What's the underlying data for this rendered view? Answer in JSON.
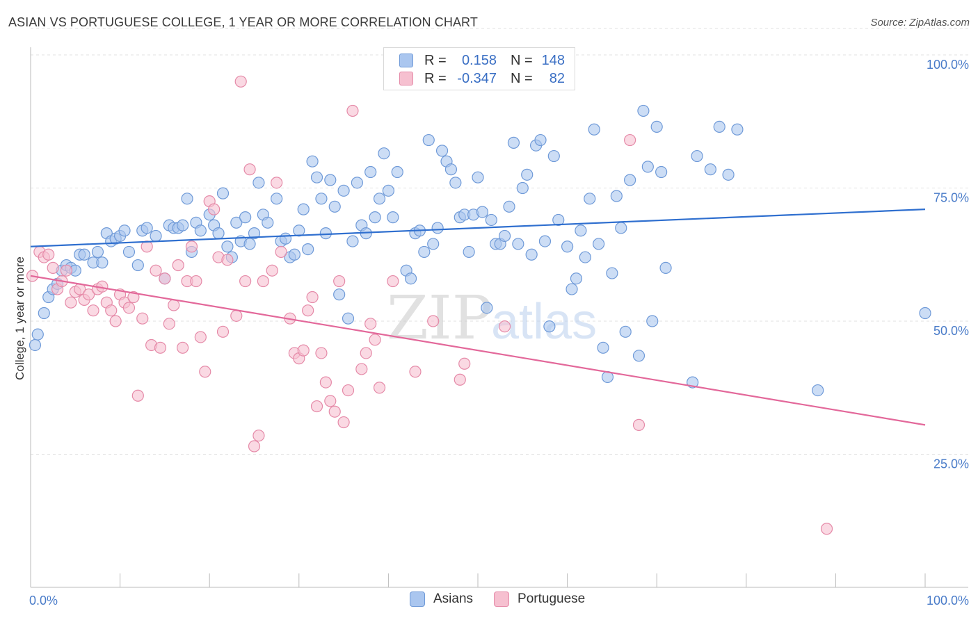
{
  "title": "ASIAN VS PORTUGUESE COLLEGE, 1 YEAR OR MORE CORRELATION CHART",
  "source": "Source: ZipAtlas.com",
  "watermark": {
    "zip": "ZIP",
    "atlas": "atlas"
  },
  "legend": {
    "r_label": "R =",
    "n_label": "N =",
    "asians": {
      "r": "0.158",
      "n": "148"
    },
    "portuguese": {
      "r": "-0.347",
      "n": "82"
    }
  },
  "bottom_legend": {
    "asians": "Asians",
    "portuguese": "Portuguese"
  },
  "colors": {
    "asians_fill": "#aac6ef",
    "asians_stroke": "#6f9ad8",
    "asians_line": "#2f6fcf",
    "portuguese_fill": "#f6c0d0",
    "portuguese_stroke": "#e58aa8",
    "portuguese_line": "#e3689a",
    "tick_text": "#4a7cc9"
  },
  "chart_data": {
    "type": "scatter",
    "title": "ASIAN VS PORTUGUESE COLLEGE, 1 YEAR OR MORE CORRELATION CHART",
    "xlabel": "",
    "ylabel": "College, 1 year or more",
    "xlim": [
      0,
      100
    ],
    "ylim": [
      0,
      105
    ],
    "x_tick_labels": [
      {
        "value": 0,
        "label": "0.0%"
      },
      {
        "value": 100,
        "label": "100.0%"
      }
    ],
    "y_tick_labels": [
      {
        "value": 25,
        "label": "25.0%"
      },
      {
        "value": 50,
        "label": "50.0%"
      },
      {
        "value": 75,
        "label": "75.0%"
      },
      {
        "value": 100,
        "label": "100.0%"
      }
    ],
    "series": [
      {
        "name": "Asians",
        "trend": {
          "x0": 0,
          "y0": 64.0,
          "x1": 100,
          "y1": 71.0
        },
        "points": [
          [
            0.5,
            45.5
          ],
          [
            0.8,
            47.5
          ],
          [
            1.5,
            51.5
          ],
          [
            2,
            54.5
          ],
          [
            2.5,
            56
          ],
          [
            3,
            57
          ],
          [
            3.5,
            59.5
          ],
          [
            4,
            60.5
          ],
          [
            4.5,
            60
          ],
          [
            5,
            59.5
          ],
          [
            5.5,
            62.5
          ],
          [
            6,
            62.5
          ],
          [
            7,
            61
          ],
          [
            7.5,
            63
          ],
          [
            8,
            61
          ],
          [
            8.5,
            66.5
          ],
          [
            9,
            65
          ],
          [
            9.5,
            65.5
          ],
          [
            10,
            66
          ],
          [
            10.5,
            67
          ],
          [
            11,
            63
          ],
          [
            12,
            60.5
          ],
          [
            12.5,
            67
          ],
          [
            13,
            67.5
          ],
          [
            14,
            66
          ],
          [
            15,
            58
          ],
          [
            15.5,
            68
          ],
          [
            16,
            67.5
          ],
          [
            16.5,
            67.5
          ],
          [
            17,
            68
          ],
          [
            17.5,
            73
          ],
          [
            18,
            63
          ],
          [
            18.5,
            68.5
          ],
          [
            19,
            67
          ],
          [
            20,
            70
          ],
          [
            20.5,
            68
          ],
          [
            21,
            66.5
          ],
          [
            21.5,
            74
          ],
          [
            22,
            64
          ],
          [
            22.5,
            62
          ],
          [
            23,
            68.5
          ],
          [
            23.5,
            65
          ],
          [
            24,
            69.5
          ],
          [
            24.5,
            64.5
          ],
          [
            25,
            66.5
          ],
          [
            25.5,
            76
          ],
          [
            26,
            70
          ],
          [
            26.5,
            68.5
          ],
          [
            27.5,
            73
          ],
          [
            28,
            65
          ],
          [
            28.5,
            65.5
          ],
          [
            29,
            62
          ],
          [
            29.5,
            62.5
          ],
          [
            30,
            67
          ],
          [
            30.5,
            71
          ],
          [
            31,
            63.5
          ],
          [
            31.5,
            80
          ],
          [
            32,
            77
          ],
          [
            32.5,
            73
          ],
          [
            33,
            66.5
          ],
          [
            33.5,
            76.5
          ],
          [
            34,
            71.5
          ],
          [
            34.5,
            55
          ],
          [
            35,
            74.5
          ],
          [
            35.5,
            50.5
          ],
          [
            36,
            65
          ],
          [
            36.5,
            76
          ],
          [
            37,
            68
          ],
          [
            37.5,
            66.5
          ],
          [
            38,
            78
          ],
          [
            38.5,
            69.5
          ],
          [
            39,
            73
          ],
          [
            39.5,
            81.5
          ],
          [
            40,
            74.5
          ],
          [
            40.5,
            69.5
          ],
          [
            41,
            78
          ],
          [
            42,
            59.5
          ],
          [
            42.5,
            58
          ],
          [
            43,
            66.5
          ],
          [
            43.5,
            67
          ],
          [
            44,
            63
          ],
          [
            44.5,
            84
          ],
          [
            45,
            64.5
          ],
          [
            45.5,
            67.5
          ],
          [
            46,
            82
          ],
          [
            46.5,
            80
          ],
          [
            47,
            78.5
          ],
          [
            47.5,
            76
          ],
          [
            48,
            69.5
          ],
          [
            48.5,
            70
          ],
          [
            49,
            63
          ],
          [
            49.5,
            70
          ],
          [
            50,
            77
          ],
          [
            50.5,
            70.5
          ],
          [
            51,
            52.5
          ],
          [
            51.5,
            69
          ],
          [
            52,
            64.5
          ],
          [
            52.5,
            64.5
          ],
          [
            53,
            66
          ],
          [
            53.5,
            71.5
          ],
          [
            54,
            83.5
          ],
          [
            54.5,
            64.5
          ],
          [
            55,
            75
          ],
          [
            55.5,
            77.5
          ],
          [
            56,
            62.5
          ],
          [
            56.5,
            83
          ],
          [
            57,
            84
          ],
          [
            57.5,
            65
          ],
          [
            58,
            49
          ],
          [
            58.5,
            81
          ],
          [
            59,
            69
          ],
          [
            60,
            64
          ],
          [
            60.5,
            56
          ],
          [
            61,
            58
          ],
          [
            61.5,
            67
          ],
          [
            62,
            62
          ],
          [
            62.5,
            73
          ],
          [
            63,
            86
          ],
          [
            63.5,
            64.5
          ],
          [
            64,
            45
          ],
          [
            64.5,
            39.5
          ],
          [
            65,
            59
          ],
          [
            65.5,
            73.5
          ],
          [
            66,
            67.5
          ],
          [
            66.5,
            48
          ],
          [
            67,
            76.5
          ],
          [
            68,
            43.5
          ],
          [
            68.5,
            89.5
          ],
          [
            69,
            79
          ],
          [
            69.5,
            50
          ],
          [
            70,
            86.5
          ],
          [
            70.5,
            78
          ],
          [
            71,
            60
          ],
          [
            74,
            38.5
          ],
          [
            74.5,
            81
          ],
          [
            76,
            78.5
          ],
          [
            77,
            86.5
          ],
          [
            78,
            77.5
          ],
          [
            79,
            86
          ],
          [
            88,
            37
          ],
          [
            100,
            51.5
          ]
        ]
      },
      {
        "name": "Portuguese",
        "trend": {
          "x0": 0,
          "y0": 58.5,
          "x1": 100,
          "y1": 30.5
        },
        "points": [
          [
            0.2,
            58.5
          ],
          [
            1,
            63
          ],
          [
            1.5,
            62
          ],
          [
            2,
            62.5
          ],
          [
            2.5,
            60
          ],
          [
            3,
            56
          ],
          [
            3.5,
            57.5
          ],
          [
            4,
            59.5
          ],
          [
            4.5,
            53.5
          ],
          [
            5,
            55.5
          ],
          [
            5.5,
            56
          ],
          [
            6,
            54
          ],
          [
            6.5,
            55
          ],
          [
            7,
            52
          ],
          [
            7.5,
            56
          ],
          [
            8,
            56.5
          ],
          [
            8.5,
            53.5
          ],
          [
            9,
            52
          ],
          [
            9.5,
            50
          ],
          [
            10,
            55
          ],
          [
            10.5,
            53.5
          ],
          [
            11,
            52.5
          ],
          [
            11.5,
            54.5
          ],
          [
            12,
            36
          ],
          [
            12.5,
            50.5
          ],
          [
            13,
            64
          ],
          [
            13.5,
            45.5
          ],
          [
            14,
            59.5
          ],
          [
            14.5,
            45
          ],
          [
            15,
            58
          ],
          [
            15.5,
            49.5
          ],
          [
            16,
            53
          ],
          [
            16.5,
            60.5
          ],
          [
            17,
            45
          ],
          [
            17.5,
            57.5
          ],
          [
            18,
            64
          ],
          [
            18.5,
            57.5
          ],
          [
            19,
            47
          ],
          [
            19.5,
            40.5
          ],
          [
            20,
            72.5
          ],
          [
            20.5,
            71
          ],
          [
            21,
            62
          ],
          [
            21.5,
            48
          ],
          [
            22,
            61.5
          ],
          [
            23,
            51
          ],
          [
            23.5,
            95
          ],
          [
            24,
            57.5
          ],
          [
            24.5,
            78.5
          ],
          [
            25,
            26.5
          ],
          [
            25.5,
            28.5
          ],
          [
            26,
            57.5
          ],
          [
            27,
            59.5
          ],
          [
            27.5,
            76
          ],
          [
            28,
            63
          ],
          [
            29,
            50.5
          ],
          [
            29.5,
            44
          ],
          [
            30,
            43
          ],
          [
            30.5,
            44.5
          ],
          [
            31,
            52
          ],
          [
            31.5,
            54.5
          ],
          [
            32,
            34
          ],
          [
            32.5,
            44
          ],
          [
            33,
            38.5
          ],
          [
            33.5,
            35
          ],
          [
            34,
            33
          ],
          [
            34.5,
            57.5
          ],
          [
            35,
            31
          ],
          [
            35.5,
            37
          ],
          [
            36,
            89.5
          ],
          [
            37,
            41
          ],
          [
            37.5,
            44
          ],
          [
            38,
            49.5
          ],
          [
            38.5,
            46.5
          ],
          [
            39,
            37.5
          ],
          [
            40.5,
            57.5
          ],
          [
            43,
            40.5
          ],
          [
            45,
            50
          ],
          [
            48,
            39
          ],
          [
            48.5,
            42
          ],
          [
            53,
            49
          ],
          [
            67,
            84
          ],
          [
            68,
            30.5
          ],
          [
            89,
            11
          ]
        ]
      }
    ]
  }
}
